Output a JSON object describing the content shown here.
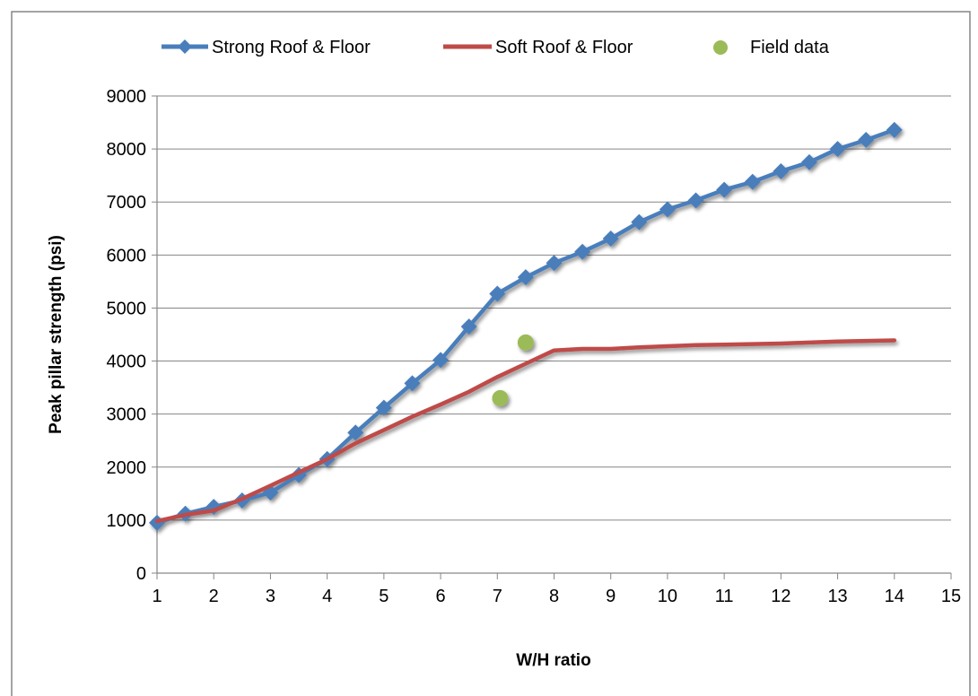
{
  "chart_data": {
    "type": "line",
    "title": "",
    "xlabel": "W/H ratio",
    "ylabel": "Peak pillar strength (psi)",
    "xlim": [
      1,
      15
    ],
    "ylim": [
      0,
      9000
    ],
    "x_ticks": [
      1,
      2,
      3,
      4,
      5,
      6,
      7,
      8,
      9,
      10,
      11,
      12,
      13,
      14,
      15
    ],
    "y_ticks": [
      0,
      1000,
      2000,
      3000,
      4000,
      5000,
      6000,
      7000,
      8000,
      9000
    ],
    "grid": "horizontal",
    "legend_position": "top",
    "series": [
      {
        "name": "Strong Roof & Floor",
        "kind": "line-with-markers",
        "marker": "diamond",
        "color": "#4a7ebb",
        "x": [
          1,
          1.5,
          2,
          2.5,
          3,
          3.5,
          4,
          4.5,
          5,
          5.5,
          6,
          6.5,
          7,
          7.5,
          8,
          8.5,
          9,
          9.5,
          10,
          10.5,
          11,
          11.5,
          12,
          12.5,
          13,
          13.5,
          14
        ],
        "y": [
          950,
          1120,
          1250,
          1370,
          1520,
          1850,
          2150,
          2650,
          3120,
          3580,
          4020,
          4650,
          5270,
          5580,
          5850,
          6060,
          6310,
          6620,
          6860,
          7030,
          7230,
          7380,
          7580,
          7750,
          8000,
          8170,
          8360
        ]
      },
      {
        "name": "Soft Roof & Floor",
        "kind": "line",
        "color": "#be4b48",
        "x": [
          1,
          1.5,
          2,
          2.5,
          3,
          3.5,
          4,
          4.5,
          5,
          5.5,
          6,
          6.5,
          7,
          7.5,
          8,
          8.5,
          9,
          9.5,
          10,
          10.5,
          11,
          11.5,
          12,
          12.5,
          13,
          13.5,
          14
        ],
        "y": [
          980,
          1100,
          1180,
          1400,
          1650,
          1900,
          2150,
          2450,
          2700,
          2950,
          3180,
          3420,
          3700,
          3950,
          4200,
          4230,
          4230,
          4260,
          4280,
          4300,
          4310,
          4320,
          4330,
          4350,
          4370,
          4380,
          4390
        ]
      },
      {
        "name": "Field data",
        "kind": "scatter",
        "marker": "circle",
        "color": "#9bbb59",
        "x": [
          7.05,
          7.5
        ],
        "y": [
          3300,
          4350
        ]
      }
    ]
  }
}
